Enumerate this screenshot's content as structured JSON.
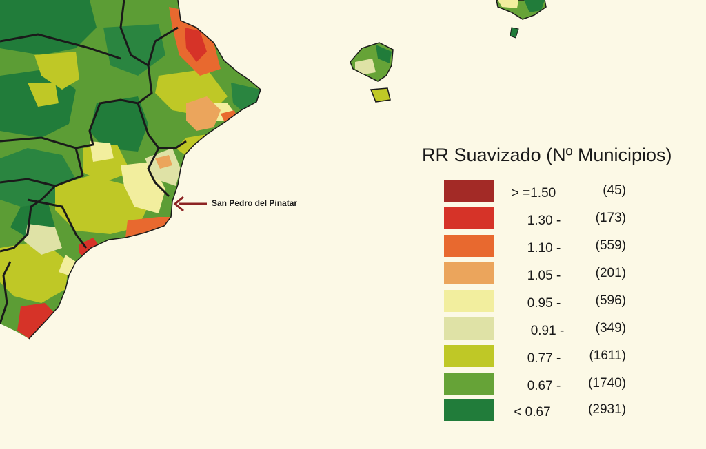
{
  "legend": {
    "title": "RR Suavizado  (Nº Municipios)",
    "classes": [
      {
        "range": "> =1.50",
        "count": "(45)",
        "color": "#a32a26"
      },
      {
        "range": "1.30 -",
        "count": "(173)",
        "color": "#d63328"
      },
      {
        "range": "1.10 -",
        "count": "(559)",
        "color": "#e8692f"
      },
      {
        "range": "1.05 -",
        "count": "(201)",
        "color": "#eba55c"
      },
      {
        "range": "0.95 -",
        "count": "(596)",
        "color": "#f2ee9e"
      },
      {
        "range": "0.91 -",
        "count": "(349)",
        "color": "#dfe2a6"
      },
      {
        "range": "0.77 -",
        "count": "(1611)",
        "color": "#bfc826"
      },
      {
        "range": "0.67 -",
        "count": "(1740)",
        "color": "#66a337"
      },
      {
        "range": "< 0.67",
        "count": "(2931)",
        "color": "#217c3a"
      }
    ]
  },
  "annotation": {
    "label": "San Pedro del Pinatar",
    "arrow_color": "#8c2323"
  },
  "colors": {
    "sea": "#fcf9e6",
    "borders": "#1a1a1a"
  }
}
